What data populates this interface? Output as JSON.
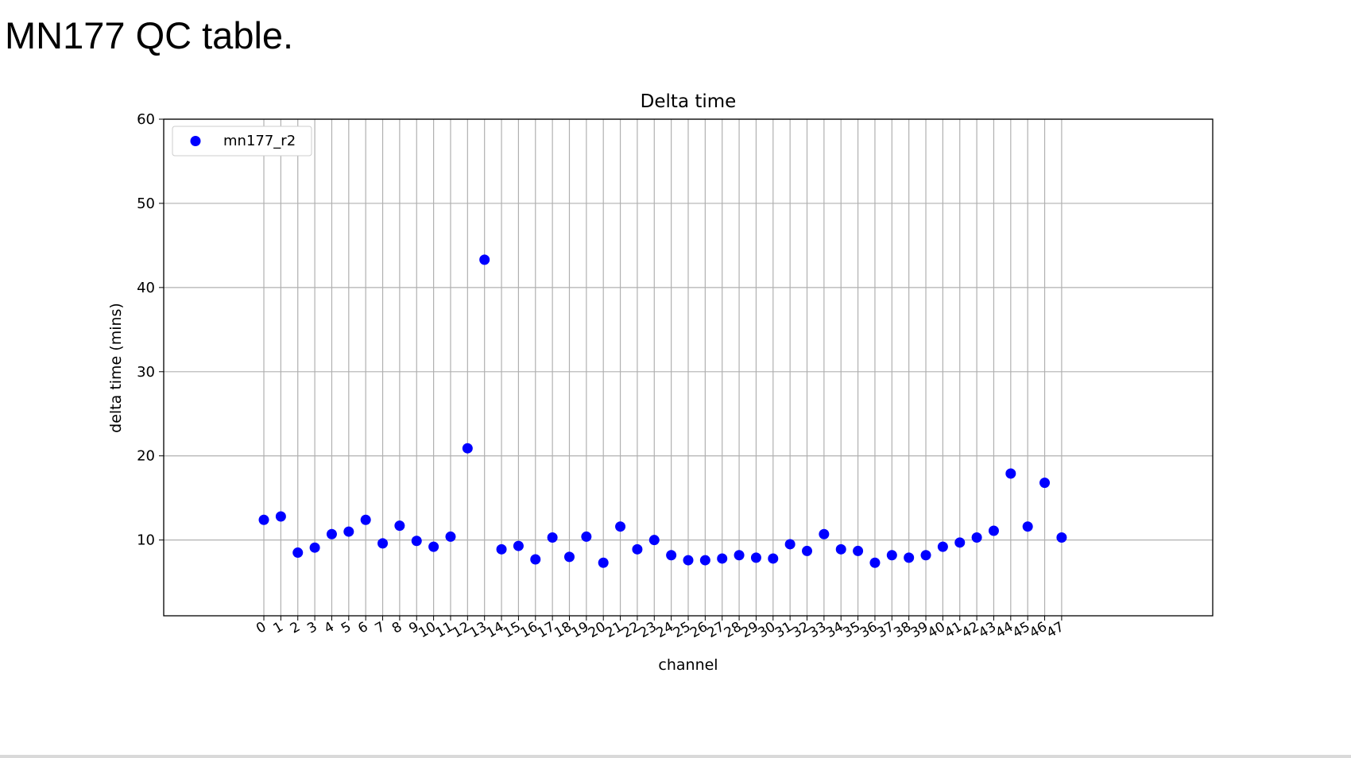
{
  "slide": {
    "title": "MN177 QC table."
  },
  "chart_data": {
    "type": "scatter",
    "title": "Delta time",
    "xlabel": "channel",
    "ylabel": "delta time (mins)",
    "x": [
      0,
      1,
      2,
      3,
      4,
      5,
      6,
      7,
      8,
      9,
      10,
      11,
      12,
      13,
      14,
      15,
      16,
      17,
      18,
      19,
      20,
      21,
      22,
      23,
      24,
      25,
      26,
      27,
      28,
      29,
      30,
      31,
      32,
      33,
      34,
      35,
      36,
      37,
      38,
      39,
      40,
      41,
      42,
      43,
      44,
      45,
      46,
      47
    ],
    "x_tick_labels": [
      "0",
      "1",
      "2",
      "3",
      "4",
      "5",
      "6",
      "7",
      "8",
      "9",
      "10",
      "11",
      "12",
      "13",
      "14",
      "15",
      "16",
      "17",
      "18",
      "19",
      "20",
      "21",
      "22",
      "23",
      "24",
      "25",
      "26",
      "27",
      "28",
      "29",
      "30",
      "31",
      "32",
      "33",
      "34",
      "35",
      "36",
      "37",
      "38",
      "39",
      "40",
      "41",
      "42",
      "43",
      "44",
      "45",
      "46",
      "47"
    ],
    "series": [
      {
        "name": "mn177_r2",
        "color": "#0000ff",
        "values": [
          12.4,
          12.8,
          8.5,
          9.1,
          10.7,
          11.0,
          12.4,
          9.6,
          11.7,
          9.9,
          9.2,
          10.4,
          20.9,
          43.3,
          8.9,
          9.3,
          7.7,
          10.3,
          8.0,
          10.4,
          7.3,
          11.6,
          8.9,
          10.0,
          8.2,
          7.6,
          7.6,
          7.8,
          8.2,
          7.9,
          7.8,
          9.5,
          8.7,
          10.7,
          8.9,
          8.7,
          7.3,
          8.2,
          7.9,
          8.2,
          9.2,
          9.7,
          10.3,
          11.1,
          17.9,
          11.6,
          16.8,
          10.3
        ]
      }
    ],
    "y_ticks": [
      10,
      20,
      30,
      40,
      50,
      60
    ],
    "ylim": [
      1,
      60
    ],
    "xlim": [
      -5.9,
      55.9
    ],
    "grid": true,
    "legend_position": "top-left"
  }
}
